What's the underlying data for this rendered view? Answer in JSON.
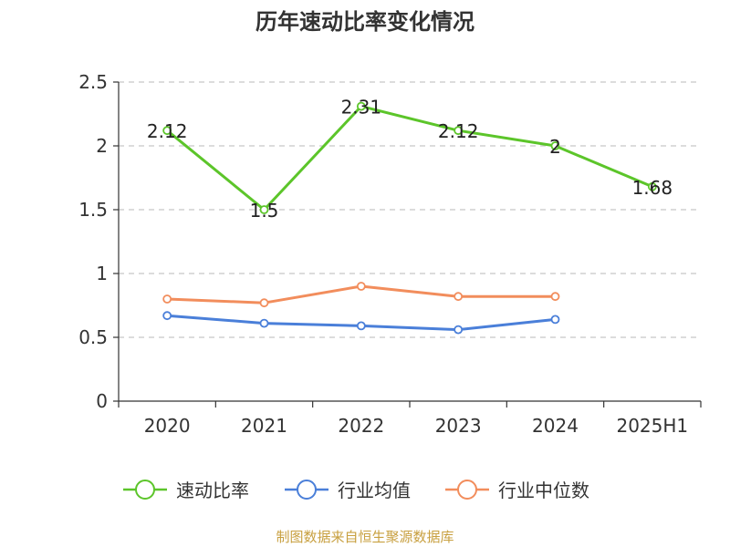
{
  "chart_data": {
    "type": "line",
    "title": "历年速动比率变化情况",
    "categories": [
      "2020",
      "2021",
      "2022",
      "2023",
      "2024",
      "2025H1"
    ],
    "ylim": [
      0,
      2.5
    ],
    "yticks": [
      "0",
      "0.5",
      "1",
      "1.5",
      "2",
      "2.5"
    ],
    "grid": true,
    "legend_position": "bottom",
    "series": [
      {
        "name": "速动比率",
        "color": "#5cc52a",
        "values": [
          2.12,
          1.5,
          2.31,
          2.12,
          2.0,
          1.68
        ],
        "labels": [
          "2.12",
          "1.5",
          "2.31",
          "2.12",
          "2",
          "1.68"
        ]
      },
      {
        "name": "行业均值",
        "color": "#4a7fd9",
        "values": [
          0.67,
          0.61,
          0.59,
          0.56,
          0.64,
          null
        ]
      },
      {
        "name": "行业中位数",
        "color": "#f28d5c",
        "values": [
          0.8,
          0.77,
          0.9,
          0.82,
          0.82,
          null
        ]
      }
    ]
  },
  "footer": {
    "source": "制图数据来自恒生聚源数据库"
  }
}
